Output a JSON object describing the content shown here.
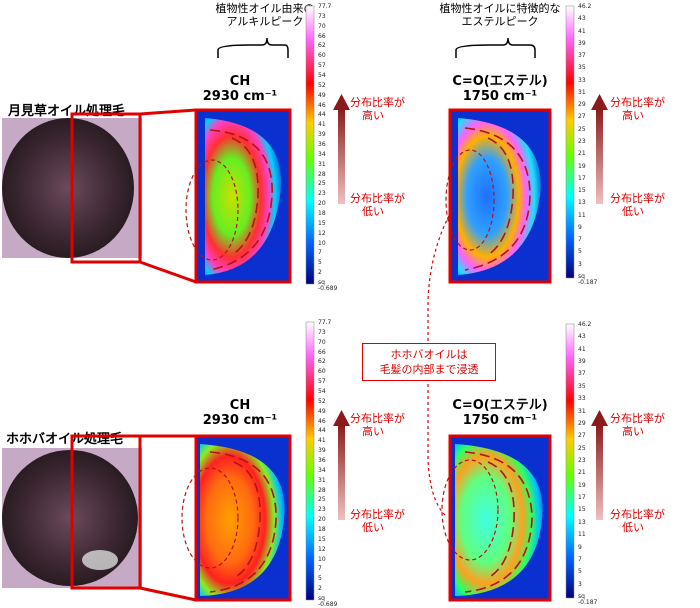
{
  "top_annotations": {
    "left": [
      "植物性オイル由来の",
      "アルキルピーク"
    ],
    "right": [
      "植物性オイルに特徴的な",
      "エステルピーク"
    ]
  },
  "rows": [
    {
      "sample_label": "月見草オイル処理毛",
      "panels": [
        {
          "peak": "CH",
          "wavenumber": "2930 cm⁻¹"
        },
        {
          "peak": "C=O(エステル)",
          "wavenumber": "1750 cm⁻¹"
        }
      ]
    },
    {
      "sample_label": "ホホバオイル処理毛",
      "panels": [
        {
          "peak": "CH",
          "wavenumber": "2930 cm⁻¹"
        },
        {
          "peak": "C=O(エステル)",
          "wavenumber": "1750 cm⁻¹"
        }
      ]
    }
  ],
  "distribution_labels": {
    "high": [
      "分布比率が",
      "高い"
    ],
    "low": [
      "分布比率が",
      "低い"
    ]
  },
  "callout": [
    "ホホバオイルは",
    "毛髪の内部まで浸透"
  ],
  "scales": {
    "ch": {
      "max": "77.7",
      "min": "-0.689",
      "unit": "sq",
      "ticks": [
        "73",
        "70",
        "66",
        "62",
        "60",
        "57",
        "54",
        "52",
        "49",
        "46",
        "44",
        "41",
        "39",
        "36",
        "34",
        "31",
        "28",
        "25",
        "23",
        "20",
        "18",
        "15",
        "12",
        "10",
        "7",
        "5",
        "2"
      ]
    },
    "co": {
      "max": "46.2",
      "min": "-0.187",
      "unit": "sq",
      "ticks": [
        "43",
        "41",
        "39",
        "37",
        "35",
        "33",
        "31",
        "29",
        "27",
        "25",
        "23",
        "21",
        "19",
        "17",
        "15",
        "13",
        "11",
        "9",
        "7",
        "5",
        "3"
      ]
    }
  },
  "colors": {
    "accent": "#e00000",
    "arrow": "#9b2f2f"
  }
}
